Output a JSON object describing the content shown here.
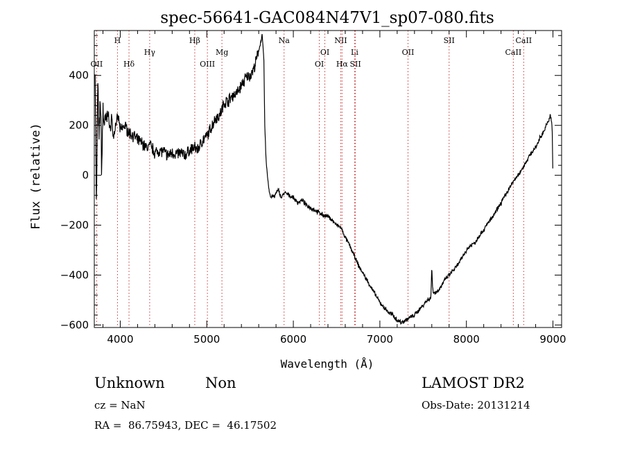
{
  "chart_data": {
    "type": "line",
    "title": "spec-56641-GAC084N47V1_sp07-080.fits",
    "xlabel": "Wavelength (Å)",
    "ylabel": "Flux (relative)",
    "xlim": [
      3700,
      9100
    ],
    "ylim": [
      -610,
      580
    ],
    "xticks": [
      {
        "value": 4000,
        "label": "4000"
      },
      {
        "value": 5000,
        "label": "5000"
      },
      {
        "value": 6000,
        "label": "6000"
      },
      {
        "value": 7000,
        "label": "7000"
      },
      {
        "value": 8000,
        "label": "8000"
      },
      {
        "value": 9000,
        "label": "9000"
      }
    ],
    "yticks": [
      {
        "value": -600,
        "label": "−600"
      },
      {
        "value": -400,
        "label": "−400"
      },
      {
        "value": -200,
        "label": "−200"
      },
      {
        "value": 0,
        "label": "0"
      },
      {
        "value": 200,
        "label": "200"
      },
      {
        "value": 400,
        "label": "400"
      }
    ],
    "grid": false,
    "legend": "none",
    "series": [
      {
        "color": "#000000",
        "x": [
          3710,
          3725,
          3740,
          3755,
          3770,
          3785,
          3800,
          3820,
          3840,
          3860,
          3880,
          3900,
          3920,
          3950,
          3980,
          4000,
          4050,
          4100,
          4150,
          4200,
          4250,
          4300,
          4350,
          4400,
          4450,
          4500,
          4550,
          4600,
          4650,
          4700,
          4750,
          4800,
          4850,
          4900,
          4950,
          5000,
          5050,
          5100,
          5150,
          5200,
          5250,
          5300,
          5350,
          5400,
          5450,
          5500,
          5550,
          5600,
          5620,
          5640,
          5660,
          5670,
          5680,
          5690,
          5700,
          5720,
          5740,
          5760,
          5780,
          5800,
          5830,
          5860,
          5900,
          5950,
          6000,
          6050,
          6100,
          6150,
          6200,
          6250,
          6300,
          6350,
          6400,
          6450,
          6500,
          6550,
          6600,
          6650,
          6700,
          6750,
          6800,
          6850,
          6900,
          6950,
          7000,
          7050,
          7100,
          7150,
          7200,
          7250,
          7300,
          7350,
          7400,
          7450,
          7500,
          7550,
          7590,
          7600,
          7605,
          7610,
          7620,
          7650,
          7700,
          7750,
          7800,
          7850,
          7900,
          7950,
          8000,
          8050,
          8100,
          8150,
          8200,
          8250,
          8300,
          8350,
          8400,
          8450,
          8500,
          8550,
          8600,
          8650,
          8700,
          8750,
          8800,
          8850,
          8900,
          8950,
          8970,
          8990,
          9000
        ],
        "y": [
          430,
          -160,
          380,
          120,
          330,
          20,
          260,
          200,
          220,
          260,
          170,
          240,
          150,
          210,
          230,
          180,
          200,
          170,
          160,
          140,
          130,
          110,
          120,
          90,
          100,
          95,
          80,
          90,
          85,
          90,
          80,
          100,
          110,
          105,
          140,
          155,
          190,
          230,
          240,
          290,
          300,
          320,
          330,
          360,
          390,
          400,
          430,
          500,
          530,
          560,
          460,
          200,
          100,
          40,
          0,
          -60,
          -90,
          -80,
          -90,
          -70,
          -60,
          -90,
          -70,
          -80,
          -90,
          -110,
          -100,
          -120,
          -130,
          -140,
          -150,
          -160,
          -165,
          -180,
          -200,
          -210,
          -250,
          -280,
          -320,
          -360,
          -390,
          -420,
          -450,
          -480,
          -510,
          -530,
          -550,
          -560,
          -580,
          -590,
          -580,
          -570,
          -560,
          -540,
          -520,
          -500,
          -490,
          -360,
          -420,
          -450,
          -470,
          -470,
          -450,
          -420,
          -400,
          -380,
          -360,
          -330,
          -300,
          -280,
          -270,
          -240,
          -220,
          -190,
          -170,
          -140,
          -110,
          -80,
          -50,
          -20,
          0,
          30,
          60,
          90,
          110,
          150,
          180,
          220,
          240,
          200,
          0
        ]
      }
    ],
    "line_markers": [
      {
        "label": "OII",
        "wavelength": 3727,
        "row": "low"
      },
      {
        "label": "H",
        "wavelength": 3968,
        "row": "high"
      },
      {
        "label": "Hδ",
        "wavelength": 4101,
        "row": "low"
      },
      {
        "label": "Hγ",
        "wavelength": 4340,
        "row": "mid"
      },
      {
        "label": "Hβ",
        "wavelength": 4861,
        "row": "high"
      },
      {
        "label": "OIII",
        "wavelength": 5007,
        "row": "low"
      },
      {
        "label": "Mg",
        "wavelength": 5175,
        "row": "mid"
      },
      {
        "label": "Na",
        "wavelength": 5893,
        "row": "high"
      },
      {
        "label": "OI",
        "wavelength": 6300,
        "row": "low"
      },
      {
        "label": "OI",
        "wavelength": 6364,
        "row": "mid"
      },
      {
        "label": "NII",
        "wavelength": 6548,
        "row": "high"
      },
      {
        "label": "Hα",
        "wavelength": 6563,
        "row": "low"
      },
      {
        "label": "Li",
        "wavelength": 6708,
        "row": "mid"
      },
      {
        "label": "SII",
        "wavelength": 6717,
        "row": "low"
      },
      {
        "label": "OII",
        "wavelength": 7325,
        "row": "mid"
      },
      {
        "label": "SII",
        "wavelength": 7800,
        "row": "high"
      },
      {
        "label": "CaII",
        "wavelength": 8542,
        "row": "mid"
      },
      {
        "label": "CaII",
        "wavelength": 8662,
        "row": "high"
      }
    ]
  },
  "info": {
    "class": "Unknown",
    "subclass": "Non",
    "cz": "cz = NaN",
    "coords": "RA =  86.75943, DEC =  46.17502",
    "survey": "LAMOST DR2",
    "obs_date": "Obs-Date: 20131214"
  }
}
